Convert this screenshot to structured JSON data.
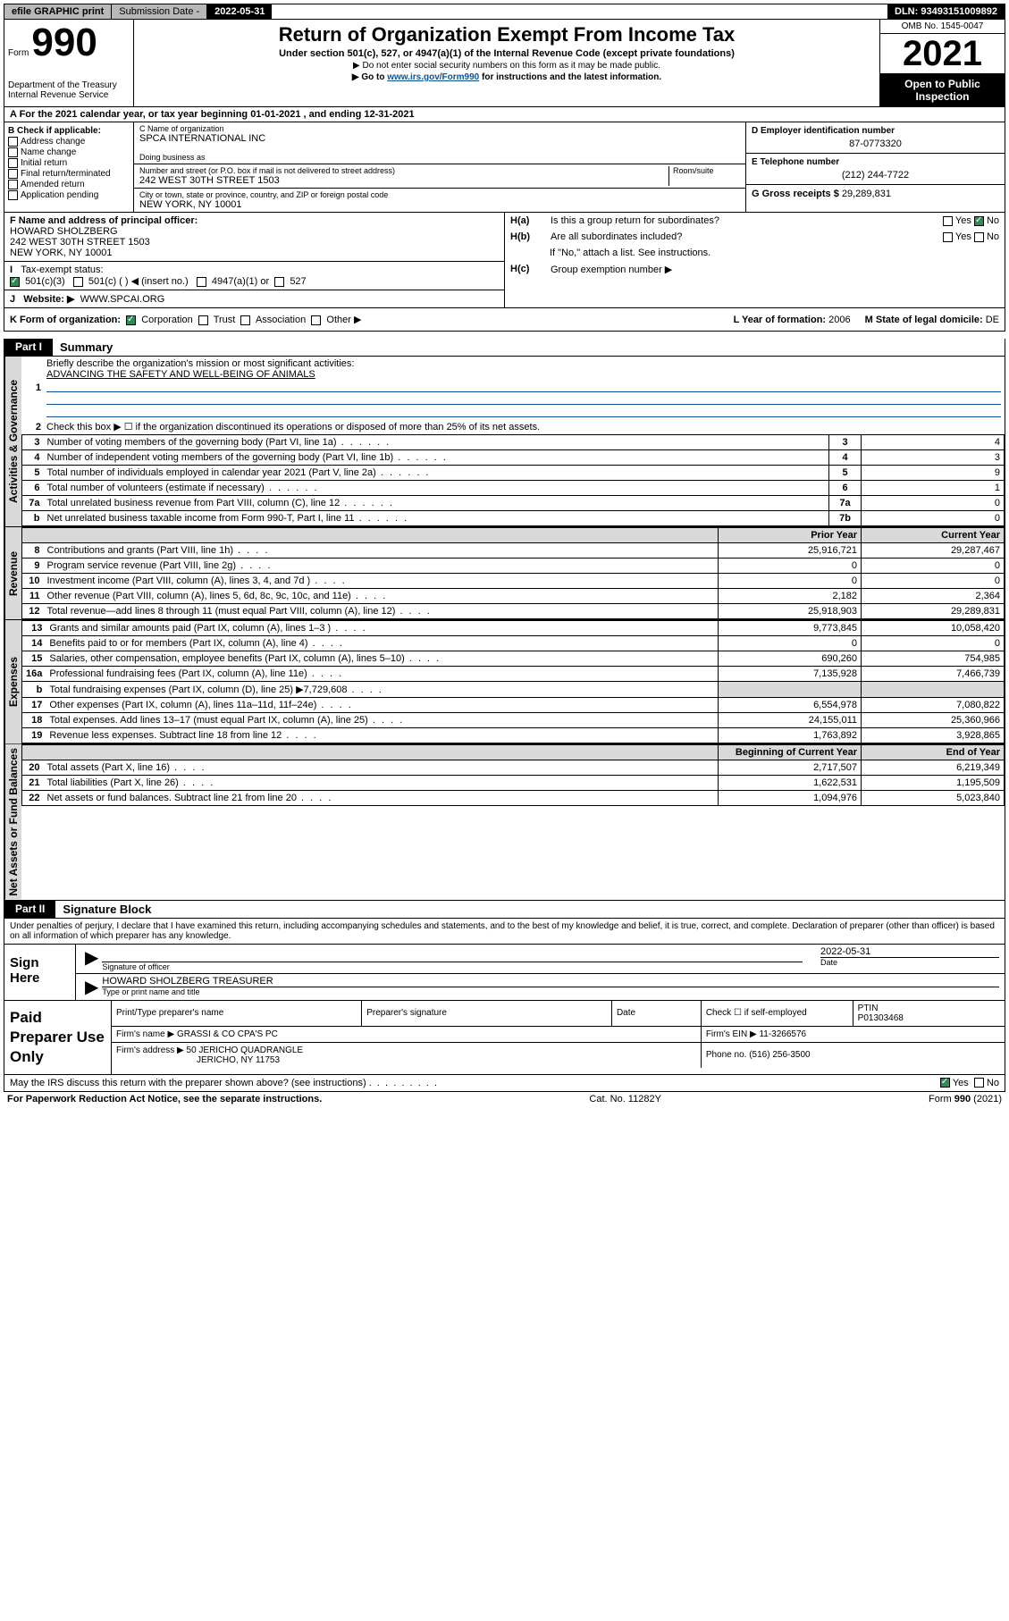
{
  "topbar": {
    "efile": "efile GRAPHIC print",
    "sub_label": "Submission Date - ",
    "sub_date": "2022-05-31",
    "dln": "DLN: 93493151009892"
  },
  "header": {
    "form_word": "Form",
    "form_num": "990",
    "dept": "Department of the Treasury\nInternal Revenue Service",
    "title": "Return of Organization Exempt From Income Tax",
    "sub1": "Under section 501(c), 527, or 4947(a)(1) of the Internal Revenue Code (except private foundations)",
    "sub2": "▶ Do not enter social security numbers on this form as it may be made public.",
    "sub3_pre": "▶ Go to ",
    "sub3_link": "www.irs.gov/Form990",
    "sub3_post": " for instructions and the latest information.",
    "omb": "OMB No. 1545-0047",
    "year": "2021",
    "public": "Open to Public Inspection"
  },
  "row_a": "A For the 2021 calendar year, or tax year beginning 01-01-2021   , and ending 12-31-2021",
  "block_b": {
    "title": "B Check if applicable:",
    "items": [
      "Address change",
      "Name change",
      "Initial return",
      "Final return/terminated",
      "Amended return",
      "Application pending"
    ]
  },
  "block_c": {
    "c_lbl": "C Name of organization",
    "c_val": "SPCA INTERNATIONAL INC",
    "dba_lbl": "Doing business as",
    "dba_val": "",
    "addr_lbl": "Number and street (or P.O. box if mail is not delivered to street address)",
    "room_lbl": "Room/suite",
    "addr_val": "242 WEST 30TH STREET 1503",
    "city_lbl": "City or town, state or province, country, and ZIP or foreign postal code",
    "city_val": "NEW YORK, NY  10001"
  },
  "block_d": {
    "d_lbl": "D Employer identification number",
    "d_val": "87-0773320",
    "e_lbl": "E Telephone number",
    "e_val": "(212) 244-7722",
    "g_lbl": "G Gross receipts $ ",
    "g_val": "29,289,831"
  },
  "block_f": {
    "f_lbl": "F Name and address of principal officer:",
    "f_name": "HOWARD SHOLZBERG",
    "f_addr1": "242 WEST 30TH STREET 1503",
    "f_addr2": "NEW YORK, NY  10001"
  },
  "block_h": {
    "ha_lbl": "H(a)",
    "ha_txt": "Is this a group return for subordinates?",
    "hb_lbl": "H(b)",
    "hb_txt": "Are all subordinates included?",
    "hb_note": "If \"No,\" attach a list. See instructions.",
    "hc_lbl": "H(c)",
    "hc_txt": "Group exemption number ▶",
    "yes": "Yes",
    "no": "No"
  },
  "row_i": {
    "lbl": "I",
    "txt": "Tax-exempt status:",
    "opt1": "501(c)(3)",
    "opt2": "501(c) (  ) ◀ (insert no.)",
    "opt3": "4947(a)(1) or",
    "opt4": "527"
  },
  "row_j": {
    "lbl": "J",
    "txt": "Website: ▶",
    "val": "WWW.SPCAI.ORG"
  },
  "row_k": {
    "lbl": "K Form of organization:",
    "opts": [
      "Corporation",
      "Trust",
      "Association",
      "Other ▶"
    ],
    "l_lbl": "L Year of formation: ",
    "l_val": "2006",
    "m_lbl": "M State of legal domicile: ",
    "m_val": "DE"
  },
  "part1": {
    "tag": "Part I",
    "title": "Summary",
    "sections": {
      "gov_label": "Activities & Governance",
      "rev_label": "Revenue",
      "exp_label": "Expenses",
      "net_label": "Net Assets or Fund Balances"
    },
    "line1": {
      "num": "1",
      "txt": "Briefly describe the organization's mission or most significant activities:",
      "mission": "ADVANCING THE SAFETY AND WELL-BEING OF ANIMALS"
    },
    "line2": {
      "num": "2",
      "txt": "Check this box ▶ ☐  if the organization discontinued its operations or disposed of more than 25% of its net assets."
    },
    "gov_rows": [
      {
        "n": "3",
        "t": "Number of voting members of the governing body (Part VI, line 1a)",
        "box": "3",
        "v": "4"
      },
      {
        "n": "4",
        "t": "Number of independent voting members of the governing body (Part VI, line 1b)",
        "box": "4",
        "v": "3"
      },
      {
        "n": "5",
        "t": "Total number of individuals employed in calendar year 2021 (Part V, line 2a)",
        "box": "5",
        "v": "9"
      },
      {
        "n": "6",
        "t": "Total number of volunteers (estimate if necessary)",
        "box": "6",
        "v": "1"
      },
      {
        "n": "7a",
        "t": "Total unrelated business revenue from Part VIII, column (C), line 12",
        "box": "7a",
        "v": "0"
      },
      {
        "n": "b",
        "t": "Net unrelated business taxable income from Form 990-T, Part I, line 11",
        "box": "7b",
        "v": "0"
      }
    ],
    "two_col_header": {
      "prior": "Prior Year",
      "current": "Current Year"
    },
    "rev_rows": [
      {
        "n": "8",
        "t": "Contributions and grants (Part VIII, line 1h)",
        "p": "25,916,721",
        "c": "29,287,467"
      },
      {
        "n": "9",
        "t": "Program service revenue (Part VIII, line 2g)",
        "p": "0",
        "c": "0"
      },
      {
        "n": "10",
        "t": "Investment income (Part VIII, column (A), lines 3, 4, and 7d )",
        "p": "0",
        "c": "0"
      },
      {
        "n": "11",
        "t": "Other revenue (Part VIII, column (A), lines 5, 6d, 8c, 9c, 10c, and 11e)",
        "p": "2,182",
        "c": "2,364"
      },
      {
        "n": "12",
        "t": "Total revenue—add lines 8 through 11 (must equal Part VIII, column (A), line 12)",
        "p": "25,918,903",
        "c": "29,289,831"
      }
    ],
    "exp_rows": [
      {
        "n": "13",
        "t": "Grants and similar amounts paid (Part IX, column (A), lines 1–3 )",
        "p": "9,773,845",
        "c": "10,058,420"
      },
      {
        "n": "14",
        "t": "Benefits paid to or for members (Part IX, column (A), line 4)",
        "p": "0",
        "c": "0"
      },
      {
        "n": "15",
        "t": "Salaries, other compensation, employee benefits (Part IX, column (A), lines 5–10)",
        "p": "690,260",
        "c": "754,985"
      },
      {
        "n": "16a",
        "t": "Professional fundraising fees (Part IX, column (A), line 11e)",
        "p": "7,135,928",
        "c": "7,466,739"
      },
      {
        "n": "b",
        "t": "Total fundraising expenses (Part IX, column (D), line 25) ▶7,729,608",
        "p": "",
        "c": "",
        "shaded": true
      },
      {
        "n": "17",
        "t": "Other expenses (Part IX, column (A), lines 11a–11d, 11f–24e)",
        "p": "6,554,978",
        "c": "7,080,822"
      },
      {
        "n": "18",
        "t": "Total expenses. Add lines 13–17 (must equal Part IX, column (A), line 25)",
        "p": "24,155,011",
        "c": "25,360,966"
      },
      {
        "n": "19",
        "t": "Revenue less expenses. Subtract line 18 from line 12",
        "p": "1,763,892",
        "c": "3,928,865"
      }
    ],
    "net_header": {
      "b": "Beginning of Current Year",
      "e": "End of Year"
    },
    "net_rows": [
      {
        "n": "20",
        "t": "Total assets (Part X, line 16)",
        "p": "2,717,507",
        "c": "6,219,349"
      },
      {
        "n": "21",
        "t": "Total liabilities (Part X, line 26)",
        "p": "1,622,531",
        "c": "1,195,509"
      },
      {
        "n": "22",
        "t": "Net assets or fund balances. Subtract line 21 from line 20",
        "p": "1,094,976",
        "c": "5,023,840"
      }
    ]
  },
  "part2": {
    "tag": "Part II",
    "title": "Signature Block",
    "decl": "Under penalties of perjury, I declare that I have examined this return, including accompanying schedules and statements, and to the best of my knowledge and belief, it is true, correct, and complete. Declaration of preparer (other than officer) is based on all information of which preparer has any knowledge.",
    "sign_here": "Sign Here",
    "sig_lbl": "Signature of officer",
    "date_lbl": "Date",
    "date_val": "2022-05-31",
    "name_val": "HOWARD SHOLZBERG TREASURER",
    "name_lbl": "Type or print name and title"
  },
  "prep": {
    "title": "Paid Preparer Use Only",
    "h1": "Print/Type preparer's name",
    "h2": "Preparer's signature",
    "h3": "Date",
    "h4_a": "Check ☐ if self-employed",
    "h4_b": "PTIN",
    "ptin": "P01303468",
    "firm_lbl": "Firm's name    ▶",
    "firm_val": "GRASSI & CO CPA'S PC",
    "ein_lbl": "Firm's EIN ▶ ",
    "ein_val": "11-3266576",
    "addr_lbl": "Firm's address ▶",
    "addr_val1": "50 JERICHO QUADRANGLE",
    "addr_val2": "JERICHO, NY  11753",
    "phone_lbl": "Phone no. ",
    "phone_val": "(516) 256-3500",
    "discuss": "May the IRS discuss this return with the preparer shown above? (see instructions)",
    "yes": "Yes",
    "no": "No"
  },
  "footer": {
    "left": "For Paperwork Reduction Act Notice, see the separate instructions.",
    "center": "Cat. No. 11282Y",
    "right": "Form 990 (2021)"
  }
}
